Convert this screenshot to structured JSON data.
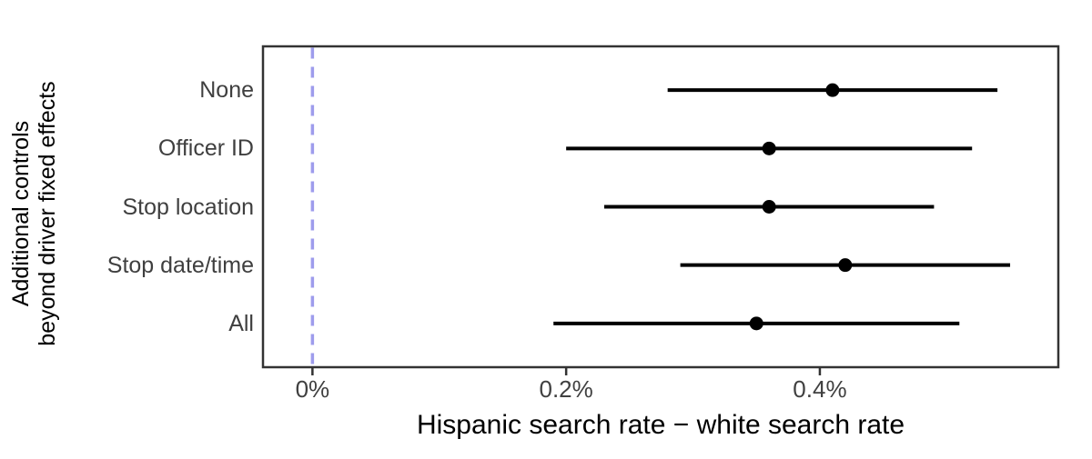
{
  "chart_data": {
    "type": "scatter",
    "variant": "forest-pointrange",
    "title": "",
    "xlabel": "Hispanic search rate − white search rate",
    "ylabel": "Additional controls beyond driver fixed effects",
    "ylabel_lines": [
      "Additional controls",
      "beyond driver fixed effects"
    ],
    "categories": [
      "None",
      "Officer ID",
      "Stop location",
      "Stop date/time",
      "All"
    ],
    "series": [
      {
        "name": "Hispanic search rate minus white search rate",
        "units": "percentage points",
        "points": [
          {
            "category": "None",
            "estimate": 0.41,
            "ci_low": 0.28,
            "ci_high": 0.54
          },
          {
            "category": "Officer ID",
            "estimate": 0.36,
            "ci_low": 0.2,
            "ci_high": 0.52
          },
          {
            "category": "Stop location",
            "estimate": 0.36,
            "ci_low": 0.23,
            "ci_high": 0.49
          },
          {
            "category": "Stop date/time",
            "estimate": 0.42,
            "ci_low": 0.29,
            "ci_high": 0.55
          },
          {
            "category": "All",
            "estimate": 0.35,
            "ci_low": 0.19,
            "ci_high": 0.51
          }
        ]
      }
    ],
    "xlim": [
      -0.039,
      0.588
    ],
    "x_ticks": [
      {
        "value": 0.0,
        "label": "0%"
      },
      {
        "value": 0.2,
        "label": "0.2%"
      },
      {
        "value": 0.4,
        "label": "0.4%"
      }
    ],
    "reference_line": {
      "value": 0,
      "style": "dashed",
      "color": "#9e9cec"
    },
    "grid": false,
    "legend": "none",
    "colors": {
      "point": "#000000",
      "error_bar": "#000000",
      "panel_border": "#333333",
      "tick_mark": "#333333",
      "axis_text": "#404040",
      "axis_title": "#000000",
      "background": "#ffffff"
    }
  }
}
